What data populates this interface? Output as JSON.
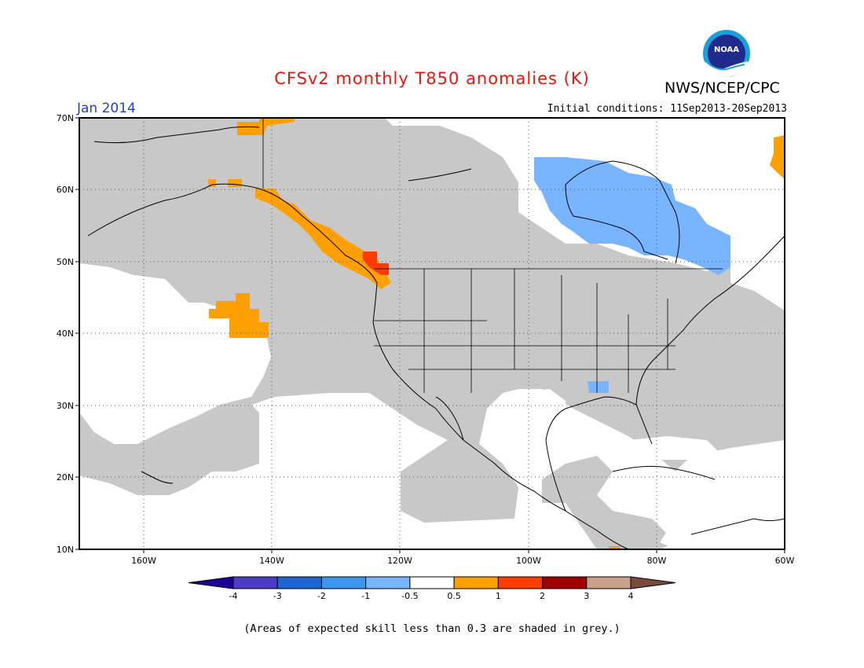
{
  "header": {
    "title": "CFSv2 monthly T850 anomalies (K)",
    "org": "NWS/NCEP/CPC",
    "valid_month": "Jan 2014",
    "init_conditions": "Initial conditions: 11Sep2013-20Sep2013",
    "logo_text": "NOAA"
  },
  "footer": {
    "note": "(Areas of expected skill less than 0.3 are shaded in grey.)"
  },
  "colors": {
    "title": "#e8160c",
    "month": "#1f3fd6",
    "grey_low_skill": "#c8c8c8",
    "anom_0_5_to_1": "#ffa000",
    "anom_1_to_2": "#ff3c00",
    "anom_neg_0_5_to_neg_1": "#78b4ff"
  },
  "map": {
    "lat_labels": [
      "70N",
      "60N",
      "50N",
      "40N",
      "30N",
      "20N",
      "10N"
    ],
    "lon_labels": [
      "160W",
      "140W",
      "120W",
      "100W",
      "80W",
      "60W"
    ]
  },
  "legend": {
    "bins": [
      {
        "color": "#1e0096"
      },
      {
        "color": "#4b3cc8"
      },
      {
        "color": "#1e64d2"
      },
      {
        "color": "#3c96f0"
      },
      {
        "color": "#78b4ff"
      },
      {
        "color": "#ffffff"
      },
      {
        "color": "#ffa000"
      },
      {
        "color": "#ff3c00"
      },
      {
        "color": "#a00000"
      },
      {
        "color": "#c8a08c"
      },
      {
        "color": "#784b3c"
      }
    ],
    "labels": [
      "-4",
      "-3",
      "-2",
      "-1",
      "-0.5",
      "0.5",
      "1",
      "2",
      "3",
      "4"
    ]
  }
}
